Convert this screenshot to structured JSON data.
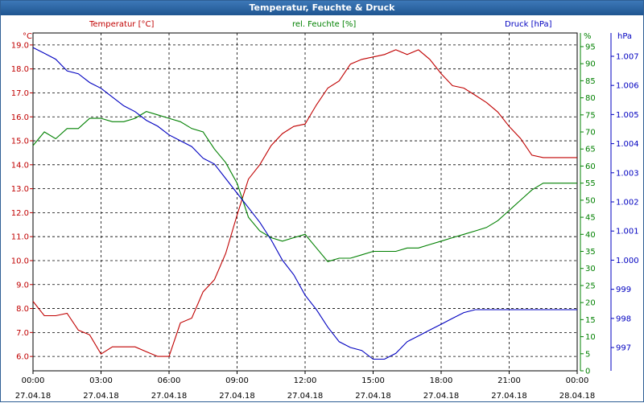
{
  "title": "Temperatur, Feuchte & Druck",
  "chart_data": {
    "type": "line",
    "title": "Temperatur, Feuchte & Druck",
    "grid": true,
    "x_ticks": [
      {
        "time": "00:00",
        "date": "27.04.18"
      },
      {
        "time": "03:00",
        "date": "27.04.18"
      },
      {
        "time": "06:00",
        "date": "27.04.18"
      },
      {
        "time": "09:00",
        "date": "27.04.18"
      },
      {
        "time": "12:00",
        "date": "27.04.18"
      },
      {
        "time": "15:00",
        "date": "27.04.18"
      },
      {
        "time": "18:00",
        "date": "27.04.18"
      },
      {
        "time": "21:00",
        "date": "27.04.18"
      },
      {
        "time": "00:00",
        "date": "28.04.18"
      }
    ],
    "x_hours": [
      0,
      0.5,
      1,
      1.5,
      2,
      2.5,
      3,
      3.5,
      4,
      4.5,
      5,
      5.5,
      6,
      6.5,
      7,
      7.5,
      8,
      8.5,
      9,
      9.5,
      10,
      10.5,
      11,
      11.5,
      12,
      12.5,
      13,
      13.5,
      14,
      14.5,
      15,
      15.5,
      16,
      16.5,
      17,
      17.5,
      18,
      18.5,
      19,
      19.5,
      20,
      20.5,
      21,
      21.5,
      22,
      22.5,
      23,
      23.5,
      24
    ],
    "axes": {
      "temperature": {
        "label": "Temperatur [°C]",
        "unit": "°C",
        "range": [
          5.4,
          19.5
        ],
        "ticks": [
          "19.0",
          "18.0",
          "17.0",
          "16.0",
          "15.0",
          "14.0",
          "13.0",
          "12.0",
          "11.0",
          "10.0",
          "9.0",
          "8.0",
          "7.0",
          "6.0"
        ],
        "color": "#c00000",
        "position": "left"
      },
      "humidity": {
        "label": "rel. Feuchte [%]",
        "unit": "%",
        "range": [
          0,
          99
        ],
        "ticks": [
          "95",
          "90",
          "85",
          "80",
          "75",
          "70",
          "65",
          "60",
          "55",
          "50",
          "45",
          "40",
          "35",
          "30",
          "25",
          "20",
          "15",
          "10",
          "5",
          "0"
        ],
        "color": "#008000",
        "position": "right"
      },
      "pressure": {
        "label": "Druck [hPa]",
        "unit": "hPa",
        "range": [
          996.2,
          1007.8
        ],
        "ticks": [
          "1.007",
          "1.006",
          "1.005",
          "1.004",
          "1.003",
          "1.002",
          "1.001",
          "1.000",
          "999",
          "998",
          "997"
        ],
        "color": "#0000c0",
        "position": "right-outer"
      }
    },
    "series": [
      {
        "name": "Temperatur [°C]",
        "axis": "temperature",
        "color": "#c00000",
        "values": [
          8.3,
          7.7,
          7.7,
          7.8,
          7.1,
          6.9,
          6.1,
          6.4,
          6.4,
          6.4,
          6.2,
          6.0,
          6.0,
          7.4,
          7.6,
          8.7,
          9.2,
          10.3,
          11.9,
          13.4,
          14.0,
          14.8,
          15.3,
          15.6,
          15.7,
          16.5,
          17.2,
          17.5,
          18.2,
          18.4,
          18.5,
          18.6,
          18.8,
          18.6,
          18.8,
          18.4,
          17.8,
          17.3,
          17.2,
          16.9,
          16.6,
          16.2,
          15.6,
          15.1,
          14.4,
          14.3,
          14.3,
          14.3,
          14.3
        ]
      },
      {
        "name": "rel. Feuchte [%]",
        "axis": "humidity",
        "color": "#008000",
        "values": [
          66,
          70,
          68,
          71,
          71,
          74,
          74,
          73,
          73,
          74,
          76,
          75,
          74,
          73,
          71,
          70,
          65,
          61,
          55,
          45,
          41,
          39,
          38,
          39,
          40,
          36,
          32,
          33,
          33,
          34,
          35,
          35,
          35,
          36,
          36,
          37,
          38,
          39,
          40,
          41,
          42,
          44,
          47,
          50,
          53,
          55,
          55,
          55,
          55
        ]
      },
      {
        "name": "Druck [hPa]",
        "axis": "pressure",
        "color": "#0000c0",
        "values": [
          1007.3,
          1007.1,
          1006.9,
          1006.5,
          1006.4,
          1006.1,
          1005.9,
          1005.6,
          1005.3,
          1005.1,
          1004.8,
          1004.6,
          1004.3,
          1004.1,
          1003.9,
          1003.5,
          1003.3,
          1002.8,
          1002.3,
          1001.8,
          1001.3,
          1000.7,
          1000.0,
          999.5,
          998.8,
          998.3,
          997.7,
          997.2,
          997.0,
          996.9,
          996.6,
          996.6,
          996.8,
          997.2,
          997.4,
          997.6,
          997.8,
          998.0,
          998.2,
          998.3,
          998.3,
          998.3,
          998.3,
          998.3,
          998.3,
          998.3,
          998.3,
          998.3,
          998.3
        ]
      }
    ]
  }
}
